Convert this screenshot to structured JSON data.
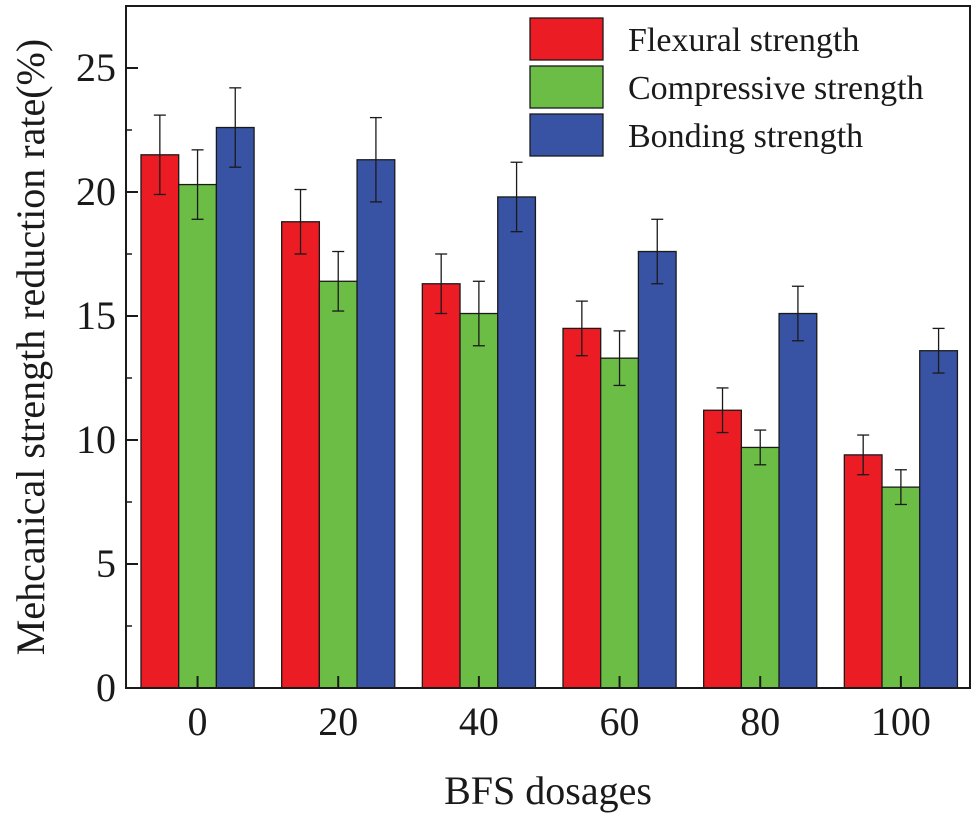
{
  "chart_data": {
    "type": "bar",
    "title": "",
    "xlabel": "BFS dosages",
    "ylabel": "Mehcanical strength reduction rate(%)",
    "ylim": [
      0,
      27.5
    ],
    "yticks": [
      0,
      5,
      10,
      15,
      20,
      25
    ],
    "categories": [
      "0",
      "20",
      "40",
      "60",
      "80",
      "100"
    ],
    "series": [
      {
        "name": "Flexural strength",
        "color": "#ec1c24",
        "values": [
          21.5,
          18.8,
          16.3,
          14.5,
          11.2,
          9.4
        ],
        "errors": [
          1.6,
          1.3,
          1.2,
          1.1,
          0.9,
          0.8
        ]
      },
      {
        "name": "Compressive strength",
        "color": "#6cbd45",
        "values": [
          20.3,
          16.4,
          15.1,
          13.3,
          9.7,
          8.1
        ],
        "errors": [
          1.4,
          1.2,
          1.3,
          1.1,
          0.7,
          0.7
        ]
      },
      {
        "name": "Bonding strength",
        "color": "#3953a4",
        "values": [
          22.6,
          21.3,
          19.8,
          17.6,
          15.1,
          13.6
        ],
        "errors": [
          1.6,
          1.7,
          1.4,
          1.3,
          1.1,
          0.9
        ]
      }
    ],
    "legend_position": "top-right",
    "grid": false
  }
}
